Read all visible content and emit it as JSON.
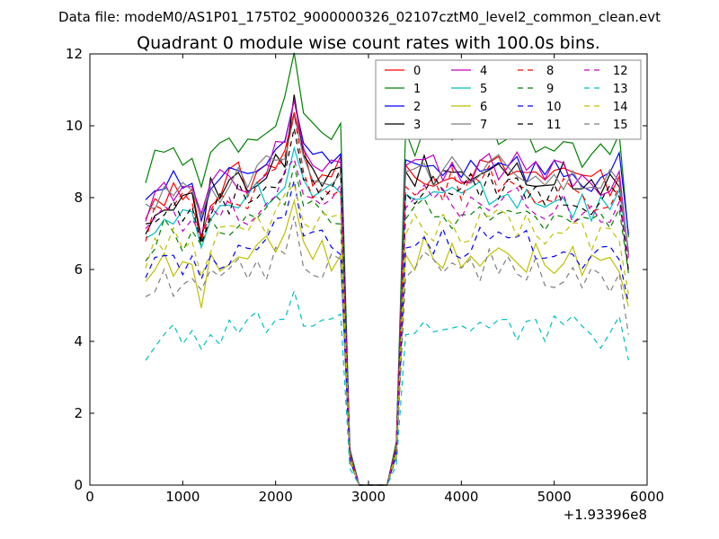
{
  "header": {
    "datafile": "Data file: modeM0/AS1P01_175T02_9000000326_02107cztM0_level2_common_clean.evt"
  },
  "chart_data": {
    "type": "line",
    "title": "Quadrant 0 module wise count rates with 100.0s bins.",
    "xlabel": "",
    "ylabel": "",
    "xlim": [
      0,
      6000
    ],
    "ylim": [
      0,
      12
    ],
    "x_offset_label": "+1.93396e8",
    "xticks": [
      0,
      1000,
      2000,
      3000,
      4000,
      5000,
      6000
    ],
    "yticks": [
      0,
      2,
      4,
      6,
      8,
      10,
      12
    ],
    "grid": false,
    "legend_position": "top-right",
    "legend_columns": 4,
    "x": [
      600,
      700,
      800,
      900,
      1000,
      1100,
      1200,
      1300,
      1400,
      1500,
      1600,
      1700,
      1800,
      1900,
      2000,
      2100,
      2200,
      2300,
      2400,
      2500,
      2600,
      2700,
      2800,
      2900,
      3000,
      3100,
      3200,
      3300,
      3400,
      3500,
      3600,
      3700,
      3800,
      3900,
      4000,
      4100,
      4200,
      4300,
      4400,
      4500,
      4600,
      4700,
      4800,
      4900,
      5000,
      5100,
      5200,
      5300,
      5400,
      5500,
      5600,
      5700,
      5800
    ],
    "profile": [
      0.82,
      0.88,
      0.9,
      0.9,
      0.89,
      0.86,
      0.8,
      0.9,
      0.91,
      0.93,
      0.94,
      0.92,
      0.96,
      0.97,
      1.0,
      1.03,
      1.16,
      1.0,
      0.96,
      0.95,
      0.95,
      0.98,
      0.1,
      0.0,
      0.0,
      0.0,
      0.0,
      0.12,
      0.97,
      0.95,
      0.97,
      0.96,
      0.96,
      0.97,
      0.95,
      0.96,
      0.97,
      0.98,
      0.97,
      0.99,
      0.96,
      0.95,
      0.95,
      0.94,
      0.94,
      0.95,
      0.93,
      0.92,
      0.91,
      0.92,
      0.92,
      0.95,
      0.72
    ],
    "series": [
      {
        "name": "0",
        "color": "#ff0000",
        "dash": "solid",
        "base": 9.1,
        "seed": 1
      },
      {
        "name": "1",
        "color": "#008000",
        "dash": "solid",
        "base": 10.1,
        "seed": 2
      },
      {
        "name": "2",
        "color": "#0000ff",
        "dash": "solid",
        "base": 9.3,
        "seed": 3
      },
      {
        "name": "3",
        "color": "#000000",
        "dash": "solid",
        "base": 9.0,
        "seed": 4
      },
      {
        "name": "4",
        "color": "#bf00bf",
        "dash": "solid",
        "base": 9.2,
        "seed": 5
      },
      {
        "name": "5",
        "color": "#00bfbf",
        "dash": "solid",
        "base": 8.4,
        "seed": 6
      },
      {
        "name": "6",
        "color": "#bfbf00",
        "dash": "solid",
        "base": 6.7,
        "seed": 7
      },
      {
        "name": "7",
        "color": "#7f7f7f",
        "dash": "solid",
        "base": 9.1,
        "seed": 8
      },
      {
        "name": "8",
        "color": "#ff0000",
        "dash": "dashed",
        "base": 8.7,
        "seed": 9
      },
      {
        "name": "9",
        "color": "#008000",
        "dash": "dashed",
        "base": 7.8,
        "seed": 10
      },
      {
        "name": "10",
        "color": "#0000ff",
        "dash": "dashed",
        "base": 7.0,
        "seed": 11
      },
      {
        "name": "11",
        "color": "#000000",
        "dash": "dashed",
        "base": 8.6,
        "seed": 12
      },
      {
        "name": "12",
        "color": "#bf00bf",
        "dash": "dashed",
        "base": 8.2,
        "seed": 13
      },
      {
        "name": "13",
        "color": "#00bfbf",
        "dash": "dashed",
        "base": 4.6,
        "seed": 14
      },
      {
        "name": "14",
        "color": "#bfbf00",
        "dash": "dashed",
        "base": 7.5,
        "seed": 15
      },
      {
        "name": "15",
        "color": "#7f7f7f",
        "dash": "dashed",
        "base": 6.3,
        "seed": 16
      }
    ]
  }
}
